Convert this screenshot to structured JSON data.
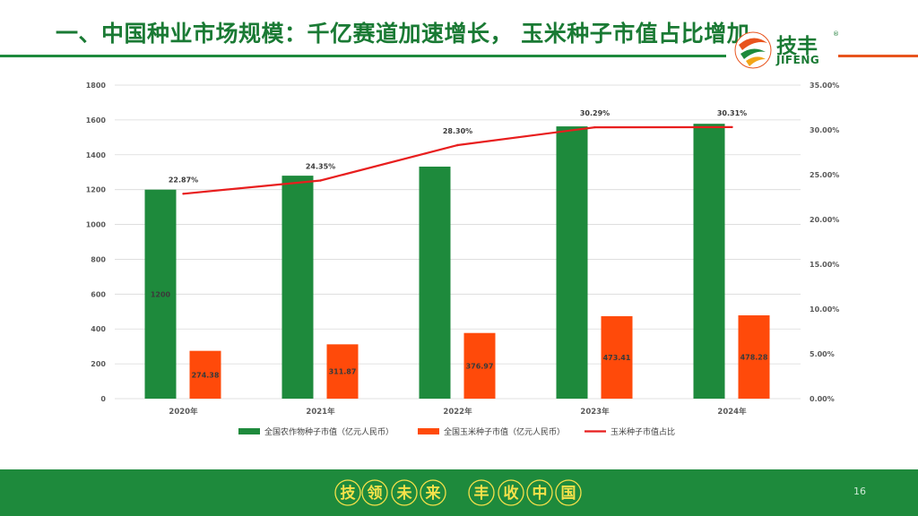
{
  "title": "一、中国种业市场规模：千亿赛道加速增长， 玉米种子市值占比增加",
  "logo": {
    "name_cn": "技丰",
    "name_en": "JIFENG",
    "reg": "®"
  },
  "footer": {
    "slogan_chars": [
      "技",
      "领",
      "未",
      "来",
      "丰",
      "收",
      "中",
      "国"
    ],
    "page_number": "16"
  },
  "colors": {
    "green": "#1e8a3c",
    "orange": "#ff4a0a",
    "red": "#e81e1e"
  },
  "chart_data": {
    "type": "bar",
    "categories": [
      "2020年",
      "2021年",
      "2022年",
      "2023年",
      "2024年"
    ],
    "series": [
      {
        "name": "全国农作物种子市值（亿元人民币）",
        "type": "bar",
        "axis": "left",
        "color": "#1e8a3c",
        "values": [
          1200,
          1280,
          1332,
          1563,
          1578
        ],
        "labels": [
          "1200",
          "",
          "",
          "",
          ""
        ]
      },
      {
        "name": "全国玉米种子市值（亿元人民币）",
        "type": "bar",
        "axis": "left",
        "color": "#ff4a0a",
        "values": [
          274.38,
          311.87,
          376.97,
          473.41,
          478.28
        ],
        "labels": [
          "274.38",
          "311.87",
          "376.97",
          "473.41",
          "478.28"
        ]
      },
      {
        "name": "玉米种子市值占比",
        "type": "line",
        "axis": "right",
        "color": "#e81e1e",
        "values": [
          22.87,
          24.35,
          28.3,
          30.29,
          30.31
        ],
        "labels": [
          "22.87%",
          "24.35%",
          "28.30%",
          "30.29%",
          "30.31%"
        ]
      }
    ],
    "y_left": {
      "min": 0,
      "max": 1800,
      "ticks": [
        "0",
        "200",
        "400",
        "600",
        "800",
        "1000",
        "1200",
        "1400",
        "1600",
        "1800"
      ]
    },
    "y_right": {
      "min": 0,
      "max": 35,
      "ticks": [
        "0.00%",
        "5.00%",
        "10.00%",
        "15.00%",
        "20.00%",
        "25.00%",
        "30.00%",
        "35.00%"
      ]
    },
    "grid": true,
    "legend": "bottom"
  }
}
